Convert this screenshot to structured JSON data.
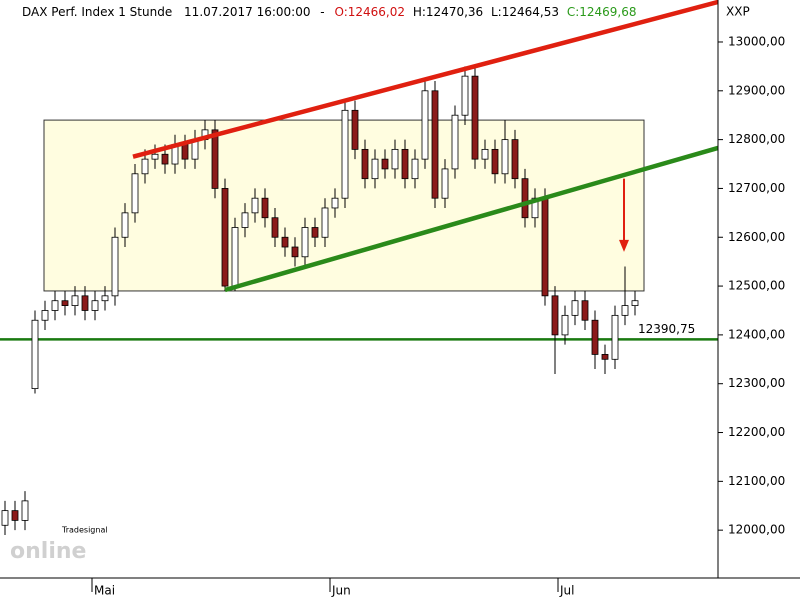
{
  "chart_data": {
    "type": "candlestick",
    "title": "DAX Perf. Index 1 Stunde",
    "timestamp": "11.07.2017 16:00:00",
    "separator": "-",
    "ohlc_labels": {
      "open": "O:12466,02",
      "high": "H:12470,36",
      "low": "L:12464,53",
      "close": "C:12469,68"
    },
    "corner_label": "XXP",
    "watermark": {
      "brand": "online",
      "small": "Tradesignal"
    },
    "up_color": "#ffffff",
    "down_color": "#8b1a1a",
    "open": [
      12010,
      12040,
      12020,
      12290,
      12430,
      12450,
      12470,
      12460,
      12480,
      12450,
      12470,
      12480,
      12600,
      12650,
      12730,
      12760,
      12770,
      12750,
      12790,
      12760,
      12800,
      12820,
      12700,
      12500,
      12620,
      12650,
      12680,
      12640,
      12600,
      12580,
      12560,
      12620,
      12600,
      12660,
      12680,
      12860,
      12780,
      12720,
      12760,
      12740,
      12780,
      12720,
      12760,
      12900,
      12680,
      12740,
      12850,
      12930,
      12760,
      12780,
      12730,
      12800,
      12720,
      12640,
      12680,
      12480,
      12400,
      12440,
      12470,
      12430,
      12360,
      12350,
      12440,
      12460
    ],
    "high": [
      12060,
      12060,
      12080,
      12450,
      12470,
      12490,
      12490,
      12500,
      12500,
      12490,
      12500,
      12620,
      12670,
      12750,
      12780,
      12790,
      12790,
      12810,
      12810,
      12820,
      12840,
      12840,
      12720,
      12640,
      12670,
      12700,
      12700,
      12660,
      12620,
      12600,
      12640,
      12640,
      12680,
      12700,
      12880,
      12880,
      12800,
      12780,
      12780,
      12800,
      12800,
      12780,
      12920,
      12920,
      12760,
      12870,
      12950,
      12950,
      12800,
      12800,
      12840,
      12820,
      12740,
      12700,
      12700,
      12500,
      12460,
      12490,
      12490,
      12450,
      12380,
      12460,
      12540,
      12490
    ],
    "low": [
      11990,
      12000,
      12000,
      12280,
      12410,
      12430,
      12440,
      12440,
      12430,
      12430,
      12450,
      12460,
      12580,
      12630,
      12710,
      12740,
      12730,
      12730,
      12740,
      12740,
      12780,
      12680,
      12490,
      12490,
      12600,
      12630,
      12620,
      12580,
      12560,
      12540,
      12540,
      12580,
      12580,
      12640,
      12660,
      12760,
      12700,
      12700,
      12720,
      12720,
      12700,
      12700,
      12740,
      12660,
      12660,
      12720,
      12830,
      12740,
      12740,
      12710,
      12710,
      12700,
      12620,
      12620,
      12460,
      12320,
      12380,
      12420,
      12410,
      12330,
      12320,
      12330,
      12420,
      12440
    ],
    "close": [
      12040,
      12020,
      12060,
      12430,
      12450,
      12470,
      12460,
      12480,
      12450,
      12470,
      12480,
      12600,
      12650,
      12730,
      12760,
      12770,
      12750,
      12790,
      12760,
      12800,
      12820,
      12700,
      12500,
      12620,
      12650,
      12680,
      12640,
      12600,
      12580,
      12560,
      12620,
      12600,
      12660,
      12680,
      12860,
      12780,
      12720,
      12760,
      12740,
      12780,
      12720,
      12760,
      12900,
      12680,
      12740,
      12850,
      12930,
      12760,
      12780,
      12730,
      12800,
      12720,
      12640,
      12680,
      12480,
      12400,
      12440,
      12470,
      12430,
      12360,
      12350,
      12440,
      12460,
      12470
    ],
    "xlim": [
      0,
      71.8
    ],
    "xticks": [
      {
        "value": 9.2,
        "label": "Mai"
      },
      {
        "value": 33,
        "label": "Jun"
      },
      {
        "value": 55.8,
        "label": "Jul"
      }
    ],
    "ylim": [
      11902,
      13086
    ],
    "yticks": [
      {
        "value": 12000,
        "label": "12000,00"
      },
      {
        "value": 12100,
        "label": "12100,00"
      },
      {
        "value": 12200,
        "label": "12200,00"
      },
      {
        "value": 12300,
        "label": "12300,00"
      },
      {
        "value": 12400,
        "label": "12400,00"
      },
      {
        "value": 12500,
        "label": "12500,00"
      },
      {
        "value": 12600,
        "label": "12600,00"
      },
      {
        "value": 12700,
        "label": "12700,00"
      },
      {
        "value": 12800,
        "label": "12800,00"
      },
      {
        "value": 12900,
        "label": "12900,00"
      },
      {
        "value": 13000,
        "label": "13000,00"
      }
    ],
    "range_box": {
      "x": [
        4.4,
        64.4
      ],
      "y": [
        12490,
        12840
      ],
      "color": "#fffde0"
    },
    "trend_lines": [
      {
        "x": [
          13.3,
          71.8
        ],
        "y": [
          12765,
          13082
        ],
        "color": "#e02010"
      },
      {
        "x": [
          22.5,
          71.8
        ],
        "y": [
          12492,
          12783
        ],
        "color": "#2a8a1a"
      }
    ],
    "support": {
      "value": 12390.75,
      "label": "12390,75",
      "color": "#1a7a10"
    },
    "arrow": {
      "x": 62.4,
      "y": [
        12720,
        12570
      ],
      "color": "#e02010"
    }
  }
}
